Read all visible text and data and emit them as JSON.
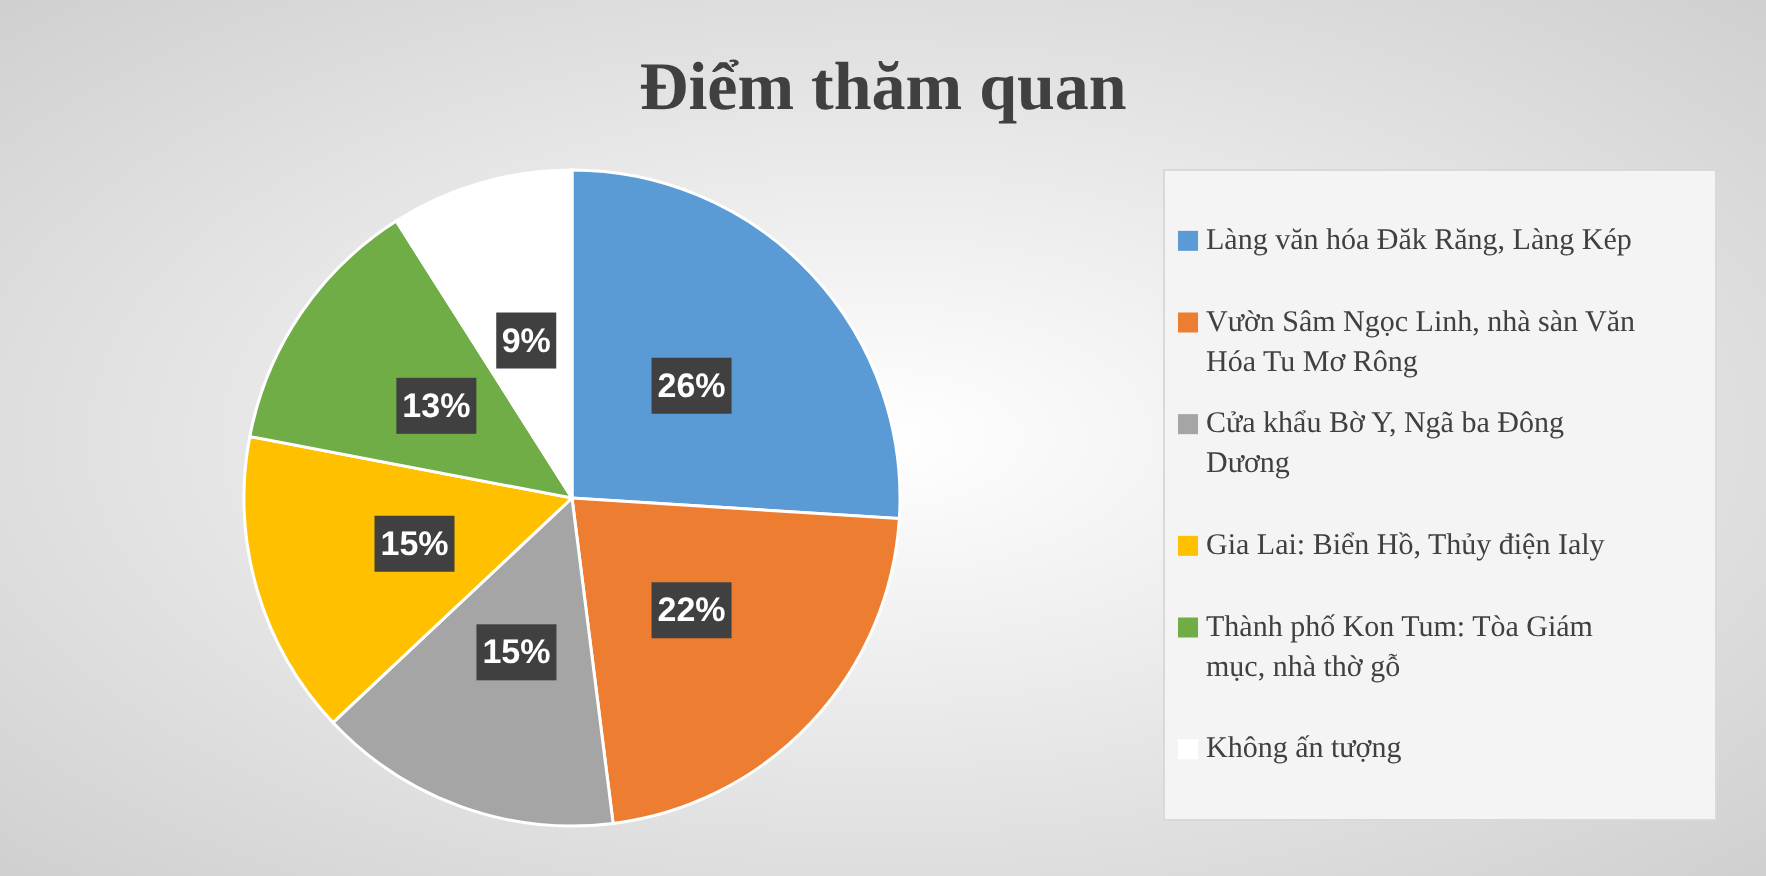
{
  "chart_data": {
    "type": "pie",
    "title": "Điểm thăm quan",
    "categories": [
      "Làng văn hóa Đăk Răng, Làng Kép",
      "Vườn Sâm Ngọc Linh, nhà sàn Văn Hóa Tu Mơ Rông",
      "Cửa khẩu Bờ Y, Ngã ba Đông Dương",
      "Gia Lai: Biển Hồ, Thủy điện Ialy",
      "Thành phố Kon Tum: Tòa Giám mục, nhà thờ gỗ",
      "Không ấn tượng"
    ],
    "values": [
      26,
      22,
      15,
      15,
      13,
      9
    ],
    "value_labels": [
      "26%",
      "22%",
      "15%",
      "15%",
      "13%",
      "9%"
    ],
    "colors": [
      "#5b9bd5",
      "#ed7d31",
      "#a5a5a5",
      "#ffc000",
      "#70ad47",
      "#ffffff"
    ],
    "legend": "right"
  }
}
